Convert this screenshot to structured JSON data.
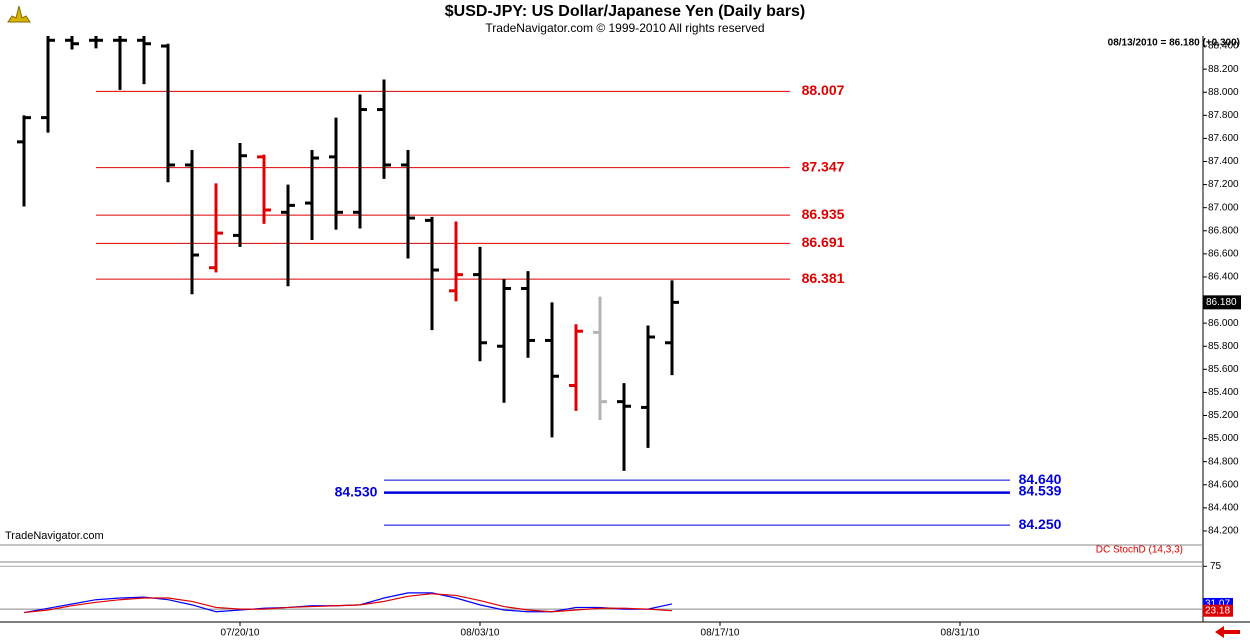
{
  "chart_data": [
    {
      "type": "ohlc",
      "title": "$USD-JPY:  US Dollar/Japanese Yen  (Daily bars)",
      "subtitle": "TradeNavigator.com © 1999-2010 All rights reserved",
      "watermark": "TradeNavigator.com",
      "last_quote": "08/13/2010 = 86.180 (+0.300)",
      "last_price": {
        "value": 86.18,
        "label": "86.180"
      },
      "x": [
        0,
        1,
        2,
        3,
        4,
        5,
        6,
        7,
        8,
        9,
        10,
        11,
        12,
        13,
        14,
        15,
        16,
        17,
        18,
        19,
        20,
        21,
        22,
        23,
        24,
        25,
        26,
        27
      ],
      "xlim": [
        -1,
        49.5
      ],
      "xticks": [
        {
          "value": 9,
          "label": "07/20/10"
        },
        {
          "value": 19,
          "label": "08/03/10"
        },
        {
          "value": 29,
          "label": "08/17/10"
        },
        {
          "value": 39,
          "label": "08/31/10"
        }
      ],
      "ylim": [
        84.087,
        88.487
      ],
      "yticks": [
        {
          "value": 84.2,
          "label": "84.200"
        },
        {
          "value": 84.4,
          "label": "84.400"
        },
        {
          "value": 84.6,
          "label": "84.600"
        },
        {
          "value": 84.8,
          "label": "84.800"
        },
        {
          "value": 85,
          "label": "85.000"
        },
        {
          "value": 85.2,
          "label": "85.200"
        },
        {
          "value": 85.4,
          "label": "85.400"
        },
        {
          "value": 85.6,
          "label": "85.600"
        },
        {
          "value": 85.8,
          "label": "85.800"
        },
        {
          "value": 86,
          "label": "86.000"
        },
        {
          "value": 86.2,
          "label": "86.200"
        },
        {
          "value": 86.4,
          "label": "86.400"
        },
        {
          "value": 86.6,
          "label": "86.600"
        },
        {
          "value": 86.8,
          "label": "86.800"
        },
        {
          "value": 87,
          "label": "87.000"
        },
        {
          "value": 87.2,
          "label": "87.200"
        },
        {
          "value": 87.4,
          "label": "87.400"
        },
        {
          "value": 87.6,
          "label": "87.600"
        },
        {
          "value": 87.8,
          "label": "87.800"
        },
        {
          "value": 88,
          "label": "88.000"
        },
        {
          "value": 88.2,
          "label": "88.200"
        },
        {
          "value": 88.4,
          "label": "88.400"
        }
      ],
      "series": {
        "open": [
          87.57,
          87.78,
          88.45,
          88.45,
          88.45,
          88.45,
          88.4,
          87.37,
          86.48,
          86.76,
          87.44,
          86.96,
          87.04,
          87.44,
          86.96,
          87.85,
          87.37,
          86.89,
          86.28,
          86.42,
          85.8,
          86.3,
          85.85,
          85.46,
          85.92,
          85.32,
          85.27,
          85.83
        ],
        "high": [
          87.8,
          88.55,
          88.55,
          88.55,
          88.55,
          88.55,
          88.42,
          87.5,
          87.21,
          87.56,
          87.46,
          87.2,
          87.5,
          87.78,
          87.98,
          88.11,
          87.5,
          86.92,
          86.88,
          86.66,
          86.38,
          86.45,
          86.18,
          85.99,
          86.23,
          85.48,
          85.98,
          86.37
        ],
        "low": [
          87.01,
          87.65,
          88.37,
          88.38,
          88.02,
          88.07,
          87.22,
          86.25,
          86.44,
          86.66,
          86.86,
          86.32,
          86.72,
          86.81,
          86.82,
          87.25,
          86.56,
          85.94,
          86.19,
          85.67,
          85.31,
          85.7,
          85.01,
          85.24,
          85.16,
          84.72,
          84.92,
          85.55
        ],
        "close": [
          87.78,
          88.45,
          88.42,
          88.45,
          88.45,
          88.42,
          87.37,
          86.59,
          86.78,
          87.45,
          86.98,
          87.02,
          87.43,
          86.96,
          87.85,
          87.37,
          86.91,
          86.46,
          86.42,
          85.83,
          86.3,
          85.85,
          85.54,
          85.93,
          85.32,
          85.28,
          85.88,
          86.18
        ],
        "colors": [
          "#000",
          "#000",
          "#000",
          "#000",
          "#000",
          "#000",
          "#000",
          "#000",
          "#e00000",
          "#000",
          "#e00000",
          "#000",
          "#000",
          "#000",
          "#000",
          "#000",
          "#000",
          "#000",
          "#e00000",
          "#000",
          "#000",
          "#000",
          "#000",
          "#e00000",
          "#b4b4b4",
          "#000",
          "#000",
          "#000"
        ]
      },
      "resistance_levels": {
        "color": "#e00000",
        "values": [
          88.007,
          87.347,
          86.935,
          86.691,
          86.381
        ]
      },
      "support_levels": {
        "color": "#0000dd",
        "values": [
          84.64,
          84.539,
          84.25
        ],
        "value_labels": [
          "84.640",
          "84.539",
          "84.250"
        ]
      },
      "target": {
        "value": 84.53,
        "label": "84.530",
        "color": "#0000dd"
      }
    },
    {
      "type": "line",
      "title": "DC StochD (14,3,3)",
      "x": [
        0,
        1,
        2,
        3,
        4,
        5,
        6,
        7,
        8,
        9,
        10,
        11,
        12,
        13,
        14,
        15,
        16,
        17,
        18,
        19,
        20,
        21,
        22,
        23,
        24,
        25,
        26,
        27
      ],
      "xlim": [
        -1,
        49.5
      ],
      "ylim": [
        10,
        80
      ],
      "yticks": [
        75
      ],
      "hline": 25,
      "series": [
        {
          "color": "#0000ff",
          "values": [
            21,
            26,
            31,
            36,
            38,
            39,
            36,
            30,
            22,
            24,
            26,
            27,
            29,
            29,
            30,
            38,
            44,
            44,
            38,
            30,
            24,
            22,
            22,
            27,
            27,
            25,
            25,
            31.07
          ]
        },
        {
          "color": "#e00000",
          "values": [
            21,
            24,
            29,
            33,
            36,
            38,
            38,
            34,
            27,
            25,
            25,
            27,
            28,
            29,
            30,
            34,
            40,
            43,
            41,
            35,
            28,
            24,
            22,
            24,
            26,
            26,
            25,
            23.18
          ]
        }
      ]
    }
  ]
}
